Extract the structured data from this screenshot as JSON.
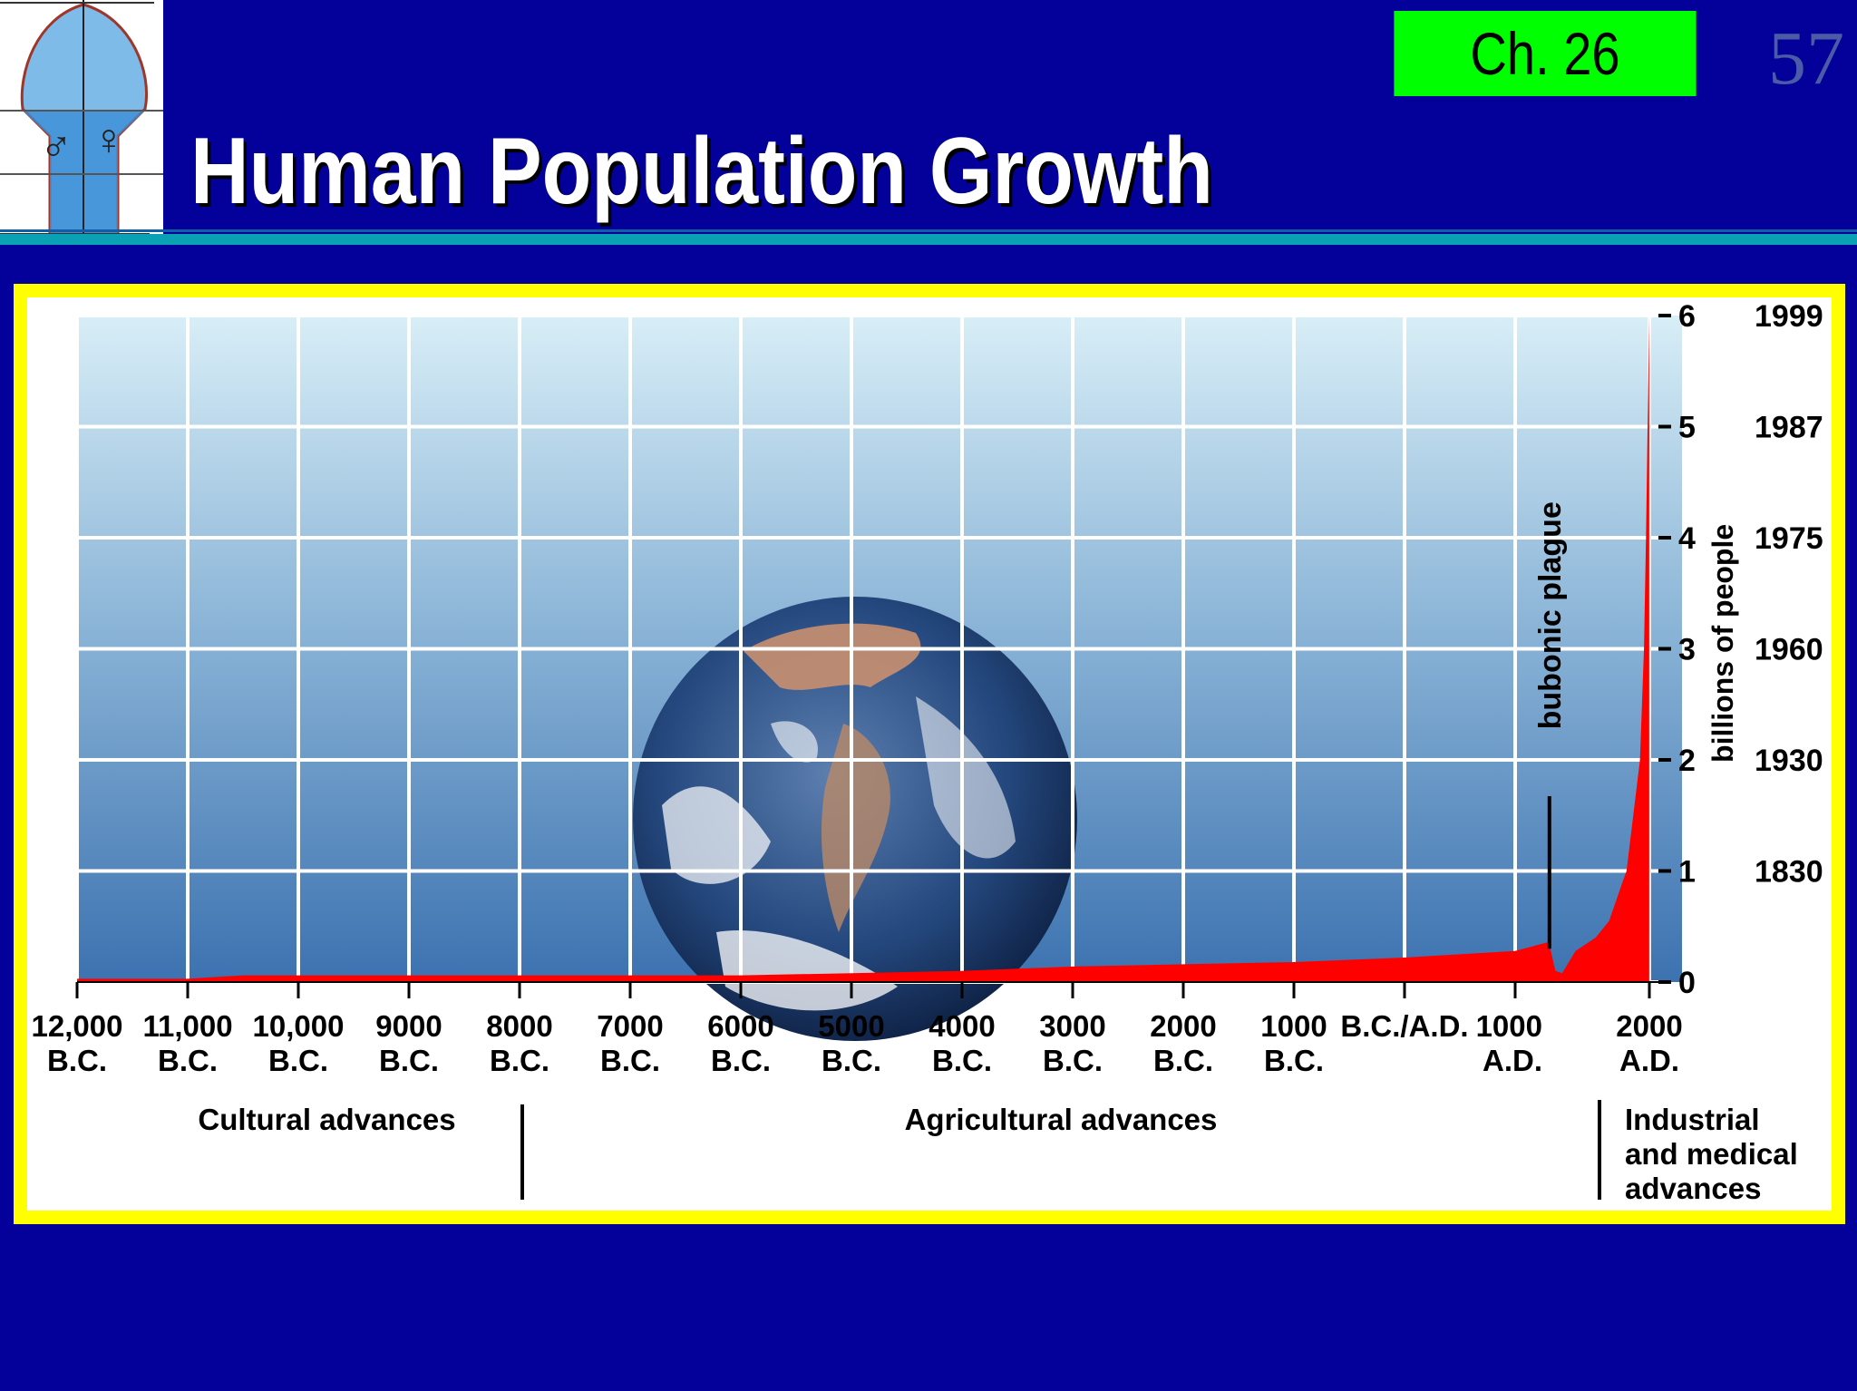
{
  "slide": {
    "chapter": "Ch. 26",
    "number": "57",
    "title": "Human Population Growth"
  },
  "logo": {
    "male_symbol": "♂",
    "female_symbol": "♀"
  },
  "colors": {
    "background": "#03019a",
    "chapter_box": "#00ff00",
    "frame": "#ffff00",
    "population_area": "#ff0000"
  },
  "chart_data": {
    "type": "area",
    "title": "",
    "ylabel": "billions of people",
    "xlim": [
      -12000,
      2200
    ],
    "ylim": [
      0,
      6
    ],
    "grid": true,
    "x_ticks": [
      {
        "value": -12000,
        "line1": "12,000",
        "line2": "B.C."
      },
      {
        "value": -11000,
        "line1": "11,000",
        "line2": "B.C."
      },
      {
        "value": -10000,
        "line1": "10,000",
        "line2": "B.C."
      },
      {
        "value": -9000,
        "line1": "9000",
        "line2": "B.C."
      },
      {
        "value": -8000,
        "line1": "8000",
        "line2": "B.C."
      },
      {
        "value": -7000,
        "line1": "7000",
        "line2": "B.C."
      },
      {
        "value": -6000,
        "line1": "6000",
        "line2": "B.C."
      },
      {
        "value": -5000,
        "line1": "5000",
        "line2": "B.C."
      },
      {
        "value": -4000,
        "line1": "4000",
        "line2": "B.C."
      },
      {
        "value": -3000,
        "line1": "3000",
        "line2": "B.C."
      },
      {
        "value": -2000,
        "line1": "2000",
        "line2": "B.C."
      },
      {
        "value": -1000,
        "line1": "1000",
        "line2": "B.C."
      },
      {
        "value": 0,
        "line1": "B.C./A.D.",
        "line2": ""
      },
      {
        "value": 1000,
        "line1": "1000",
        "line2": "A.D."
      },
      {
        "value": 2000,
        "line1": "2000",
        "line2": "A.D."
      }
    ],
    "y_ticks": [
      {
        "value": 0,
        "label": "0",
        "year": ""
      },
      {
        "value": 1,
        "label": "1",
        "year": "1830"
      },
      {
        "value": 2,
        "label": "2",
        "year": "1930"
      },
      {
        "value": 3,
        "label": "3",
        "year": "1960"
      },
      {
        "value": 4,
        "label": "4",
        "year": "1975"
      },
      {
        "value": 5,
        "label": "5",
        "year": "1987"
      },
      {
        "value": 6,
        "label": "6",
        "year": "1999"
      }
    ],
    "series": [
      {
        "points": [
          {
            "x": -12000,
            "y": 0.03
          },
          {
            "x": -11000,
            "y": 0.03
          },
          {
            "x": -10500,
            "y": 0.06
          },
          {
            "x": -8000,
            "y": 0.06
          },
          {
            "x": -6000,
            "y": 0.06
          },
          {
            "x": -5000,
            "y": 0.08
          },
          {
            "x": -4000,
            "y": 0.1
          },
          {
            "x": -3000,
            "y": 0.14
          },
          {
            "x": -2000,
            "y": 0.16
          },
          {
            "x": -1000,
            "y": 0.18
          },
          {
            "x": 0,
            "y": 0.22
          },
          {
            "x": 1000,
            "y": 0.28
          },
          {
            "x": 1250,
            "y": 0.36
          },
          {
            "x": 1300,
            "y": 0.1
          },
          {
            "x": 1350,
            "y": 0.08
          },
          {
            "x": 1450,
            "y": 0.28
          },
          {
            "x": 1600,
            "y": 0.4
          },
          {
            "x": 1700,
            "y": 0.55
          },
          {
            "x": 1800,
            "y": 0.9
          },
          {
            "x": 1830,
            "y": 1.0
          },
          {
            "x": 1930,
            "y": 2.0
          },
          {
            "x": 1960,
            "y": 3.0
          },
          {
            "x": 1975,
            "y": 4.0
          },
          {
            "x": 1987,
            "y": 5.0
          },
          {
            "x": 1999,
            "y": 6.0
          }
        ]
      }
    ],
    "annotations": {
      "plague_label": "bubonic plague",
      "plague_x": 1350
    },
    "eras": [
      {
        "label": "Cultural advances",
        "from": -12000,
        "to": -8000
      },
      {
        "label": "Agricultural advances",
        "from": -8000,
        "to": 1750
      },
      {
        "label_lines": [
          "Industrial",
          "and medical",
          "advances"
        ],
        "from": 1750,
        "to": 2000
      }
    ]
  }
}
